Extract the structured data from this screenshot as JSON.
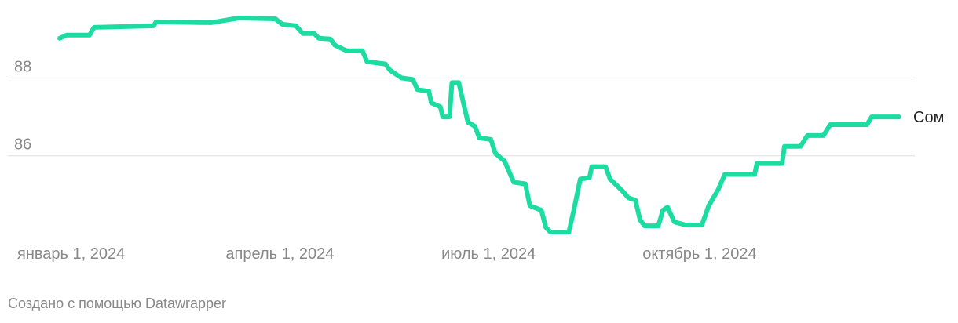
{
  "chart_data": {
    "type": "line",
    "x": [
      "2023-12-27",
      "2023-12-30",
      "2024-01-09",
      "2024-01-11",
      "2024-02-06",
      "2024-02-07",
      "2024-03-02",
      "2024-03-14",
      "2024-03-30",
      "2024-04-02",
      "2024-04-08",
      "2024-04-11",
      "2024-04-16",
      "2024-04-18",
      "2024-04-23",
      "2024-04-25",
      "2024-04-30",
      "2024-05-07",
      "2024-05-09",
      "2024-05-17",
      "2024-05-19",
      "2024-05-24",
      "2024-05-29",
      "2024-05-31",
      "2024-06-05",
      "2024-06-06",
      "2024-06-10",
      "2024-06-11",
      "2024-06-14",
      "2024-06-15",
      "2024-06-18",
      "2024-06-20",
      "2024-06-22",
      "2024-06-25",
      "2024-06-27",
      "2024-07-02",
      "2024-07-04",
      "2024-07-08",
      "2024-07-12",
      "2024-07-17",
      "2024-07-19",
      "2024-07-24",
      "2024-07-26",
      "2024-07-28",
      "2024-08-05",
      "2024-08-07",
      "2024-08-10",
      "2024-08-14",
      "2024-08-15",
      "2024-08-21",
      "2024-08-23",
      "2024-08-28",
      "2024-08-31",
      "2024-09-03",
      "2024-09-05",
      "2024-09-07",
      "2024-09-13",
      "2024-09-15",
      "2024-09-17",
      "2024-09-20",
      "2024-09-25",
      "2024-10-02",
      "2024-10-05",
      "2024-10-09",
      "2024-10-12",
      "2024-10-25",
      "2024-10-26",
      "2024-11-06",
      "2024-11-07",
      "2024-11-14",
      "2024-11-17",
      "2024-11-24",
      "2024-11-27",
      "2024-12-13",
      "2024-12-15",
      "2024-12-27"
    ],
    "series": [
      {
        "name": "Сом",
        "color": "#1cdca2",
        "values": [
          89.02,
          89.1,
          89.1,
          89.3,
          89.34,
          89.44,
          89.42,
          89.54,
          89.52,
          89.38,
          89.34,
          89.14,
          89.14,
          89.02,
          89.0,
          88.84,
          88.7,
          88.7,
          88.42,
          88.36,
          88.2,
          88.0,
          87.96,
          87.7,
          87.66,
          87.36,
          87.26,
          87.0,
          87.0,
          87.88,
          87.88,
          87.36,
          86.86,
          86.76,
          86.46,
          86.42,
          86.06,
          85.86,
          85.32,
          85.28,
          84.72,
          84.6,
          84.16,
          84.04,
          84.04,
          84.56,
          85.4,
          85.44,
          85.72,
          85.72,
          85.4,
          85.12,
          84.92,
          84.86,
          84.36,
          84.2,
          84.2,
          84.6,
          84.68,
          84.3,
          84.22,
          84.22,
          84.72,
          85.12,
          85.52,
          85.52,
          85.8,
          85.8,
          86.24,
          86.24,
          86.52,
          86.52,
          86.8,
          86.8,
          87.0,
          87.0
        ]
      }
    ],
    "ylim": [
      84,
      89.6
    ],
    "yticks": [
      86,
      88
    ],
    "grid": true,
    "xlim": [
      "2023-12-27",
      "2024-12-27"
    ],
    "xticks": [
      {
        "value": "2024-01-01",
        "label": "январь 1, 2024"
      },
      {
        "value": "2024-04-01",
        "label": "апрель 1, 2024"
      },
      {
        "value": "2024-07-01",
        "label": "июль 1, 2024"
      },
      {
        "value": "2024-10-01",
        "label": "октябрь 1, 2024"
      }
    ],
    "footer": "Создано с помощью Datawrapper"
  }
}
